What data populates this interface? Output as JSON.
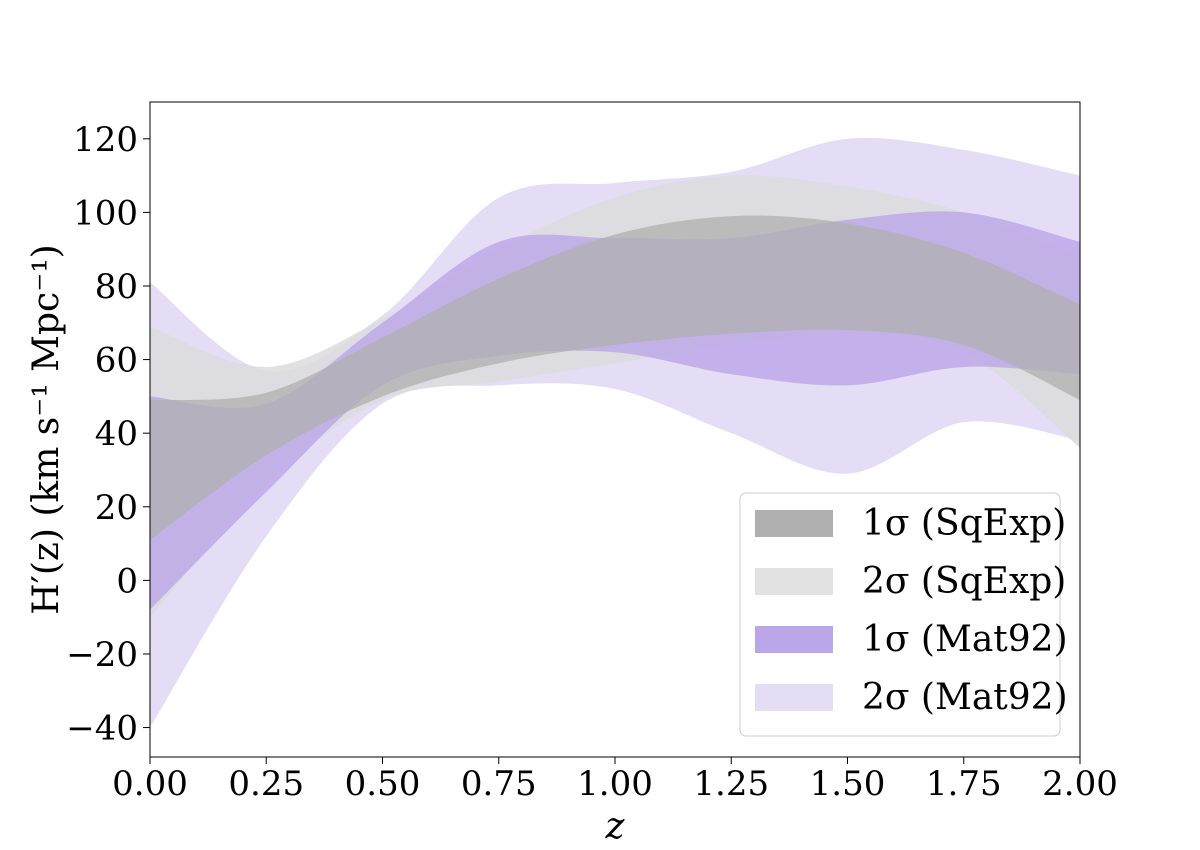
{
  "chart_data": {
    "type": "area",
    "title": "",
    "xlabel": "z",
    "ylabel": "H′(z) (km s⁻¹ Mpc⁻¹)",
    "xlim": [
      0,
      2
    ],
    "ylim": [
      -48,
      130
    ],
    "xticks": [
      0.0,
      0.25,
      0.5,
      0.75,
      1.0,
      1.25,
      1.5,
      1.75,
      2.0
    ],
    "xtick_labels": [
      "0.00",
      "0.25",
      "0.50",
      "0.75",
      "1.00",
      "1.25",
      "1.50",
      "1.75",
      "2.00"
    ],
    "yticks": [
      -40,
      -20,
      0,
      20,
      40,
      60,
      80,
      100,
      120
    ],
    "ytick_labels": [
      "−40",
      "−20",
      "0",
      "20",
      "40",
      "60",
      "80",
      "100",
      "120"
    ],
    "grid": false,
    "legend_position": "lower-right",
    "x": [
      0.0,
      0.25,
      0.5,
      0.75,
      1.0,
      1.25,
      1.5,
      1.75,
      2.0
    ],
    "series": [
      {
        "name": "1σ (SqExp)",
        "color": "#b0b0b0",
        "lower": [
          11,
          34,
          50,
          59,
          64,
          67,
          68,
          64,
          49
        ],
        "upper": [
          49,
          51,
          66,
          82,
          94,
          99,
          97,
          89,
          75
        ]
      },
      {
        "name": "2σ (SqExp)",
        "color": "#dcdcdc",
        "lower": [
          -10,
          26,
          49,
          54,
          59,
          64,
          67,
          62,
          36
        ],
        "upper": [
          69,
          58,
          71,
          90,
          104,
          110,
          107,
          100,
          88
        ]
      },
      {
        "name": "1σ (Mat92)",
        "color": "#bba6e9",
        "lower": [
          -8,
          24,
          53,
          61,
          62,
          56,
          53,
          58,
          56
        ],
        "upper": [
          50,
          48,
          70,
          92,
          93,
          93,
          98,
          100,
          92
        ]
      },
      {
        "name": "2σ (Mat92)",
        "color": "#e5ddf5",
        "lower": [
          -40,
          12,
          48,
          53,
          52,
          40,
          29,
          43,
          38
        ],
        "upper": [
          81,
          57,
          72,
          104,
          108,
          111,
          120,
          117,
          110
        ]
      }
    ],
    "legend": [
      {
        "label": "1σ (SqExp)",
        "color": "#b0b0b0"
      },
      {
        "label": "2σ (SqExp)",
        "color": "#e2e2e2"
      },
      {
        "label": "1σ (Mat92)",
        "color": "#bba6e9"
      },
      {
        "label": "2σ (Mat92)",
        "color": "#e5ddf5"
      }
    ]
  }
}
